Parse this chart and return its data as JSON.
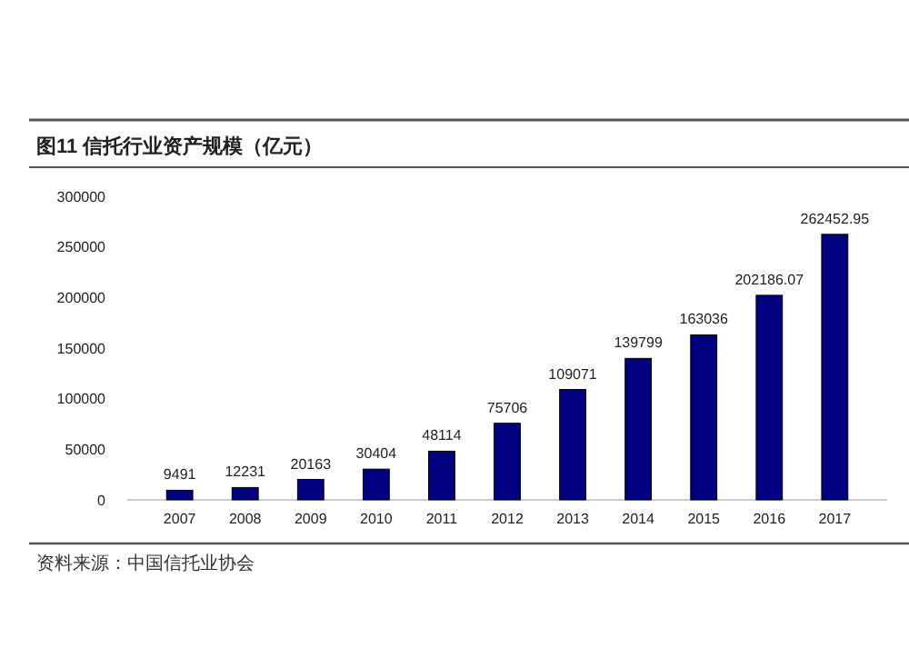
{
  "chart_data": {
    "type": "bar",
    "title": "图11 信托行业资产规模（亿元）",
    "categories": [
      "2007",
      "2008",
      "2009",
      "2010",
      "2011",
      "2012",
      "2013",
      "2014",
      "2015",
      "2016",
      "2017"
    ],
    "values": [
      9491,
      12231,
      20163,
      30404,
      48114,
      75706,
      109071,
      139799,
      163036,
      202186.07,
      262452.95
    ],
    "color": "#000080",
    "ylim": [
      0,
      300000
    ],
    "yticks": [
      0,
      50000,
      100000,
      150000,
      200000,
      250000,
      300000
    ],
    "data_labels": true,
    "annotations": [
      "资料来源：中国信托业协会"
    ]
  }
}
